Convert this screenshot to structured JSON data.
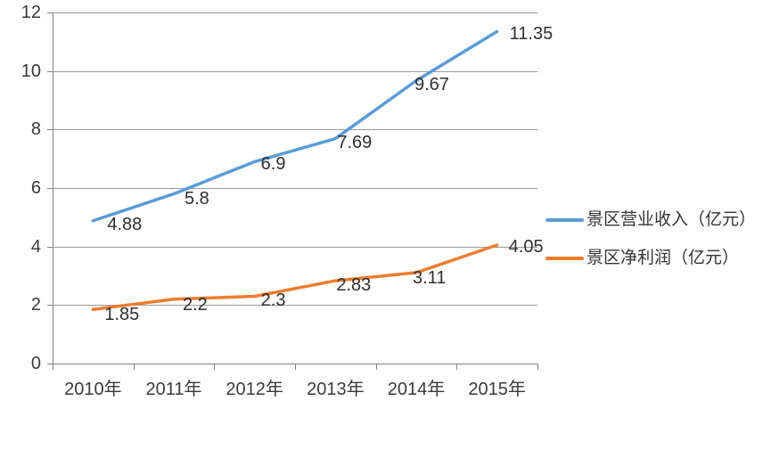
{
  "chart_data": {
    "type": "line",
    "title": "",
    "xlabel": "",
    "ylabel": "",
    "categories": [
      "2010年",
      "2011年",
      "2012年",
      "2013年",
      "2014年",
      "2015年"
    ],
    "series": [
      {
        "name": "景区营业收入（亿元）",
        "color": "#5B9BD5",
        "values": [
          4.88,
          5.8,
          6.9,
          7.69,
          9.67,
          11.35
        ],
        "labels": [
          "4.88",
          "5.8",
          "6.9",
          "7.69",
          "9.67",
          "11.35"
        ]
      },
      {
        "name": "景区净利润（亿元）",
        "color": "#ED7D31",
        "values": [
          1.85,
          2.2,
          2.3,
          2.83,
          3.11,
          4.05
        ],
        "labels": [
          "1.85",
          "2.2",
          "2.3",
          "2.83",
          "3.11",
          "4.05"
        ]
      }
    ],
    "y_ticks": [
      0,
      2,
      4,
      6,
      8,
      10,
      12
    ],
    "ylim": [
      0,
      12
    ],
    "grid": true,
    "legend_position": "right",
    "data_labels": true,
    "colors": {
      "gridline": "#9A9A9A",
      "axis": "#808080",
      "text": "#3a3a3a"
    }
  }
}
